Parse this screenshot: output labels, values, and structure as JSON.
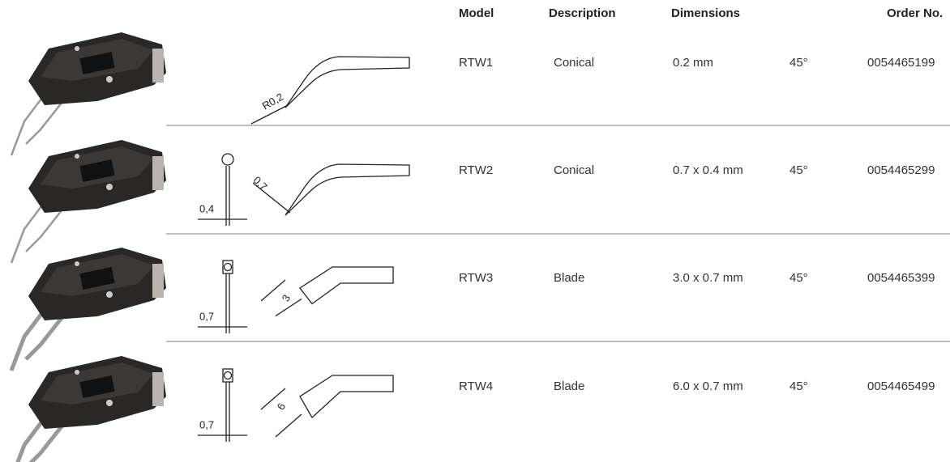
{
  "header": {
    "model": "Model",
    "description": "Description",
    "dimensions": "Dimensions",
    "order_no": "Order No."
  },
  "rows": [
    {
      "model": "RTW1",
      "description": "Conical",
      "dimensions": "0.2 mm",
      "angle": "45°",
      "order_no": "0054465199",
      "drawing_labels": [
        "R0,2"
      ]
    },
    {
      "model": "RTW2",
      "description": "Conical",
      "dimensions": "0.7 x 0.4 mm",
      "angle": "45°",
      "order_no": "0054465299",
      "drawing_labels": [
        "0,4",
        "0,7"
      ]
    },
    {
      "model": "RTW3",
      "description": "Blade",
      "dimensions": "3.0 x 0.7 mm",
      "angle": "45°",
      "order_no": "0054465399",
      "drawing_labels": [
        "0,7",
        "3"
      ]
    },
    {
      "model": "RTW4",
      "description": "Blade",
      "dimensions": "6.0 x 0.7 mm",
      "angle": "45°",
      "order_no": "0054465499",
      "drawing_labels": [
        "0,7",
        "6"
      ]
    }
  ]
}
